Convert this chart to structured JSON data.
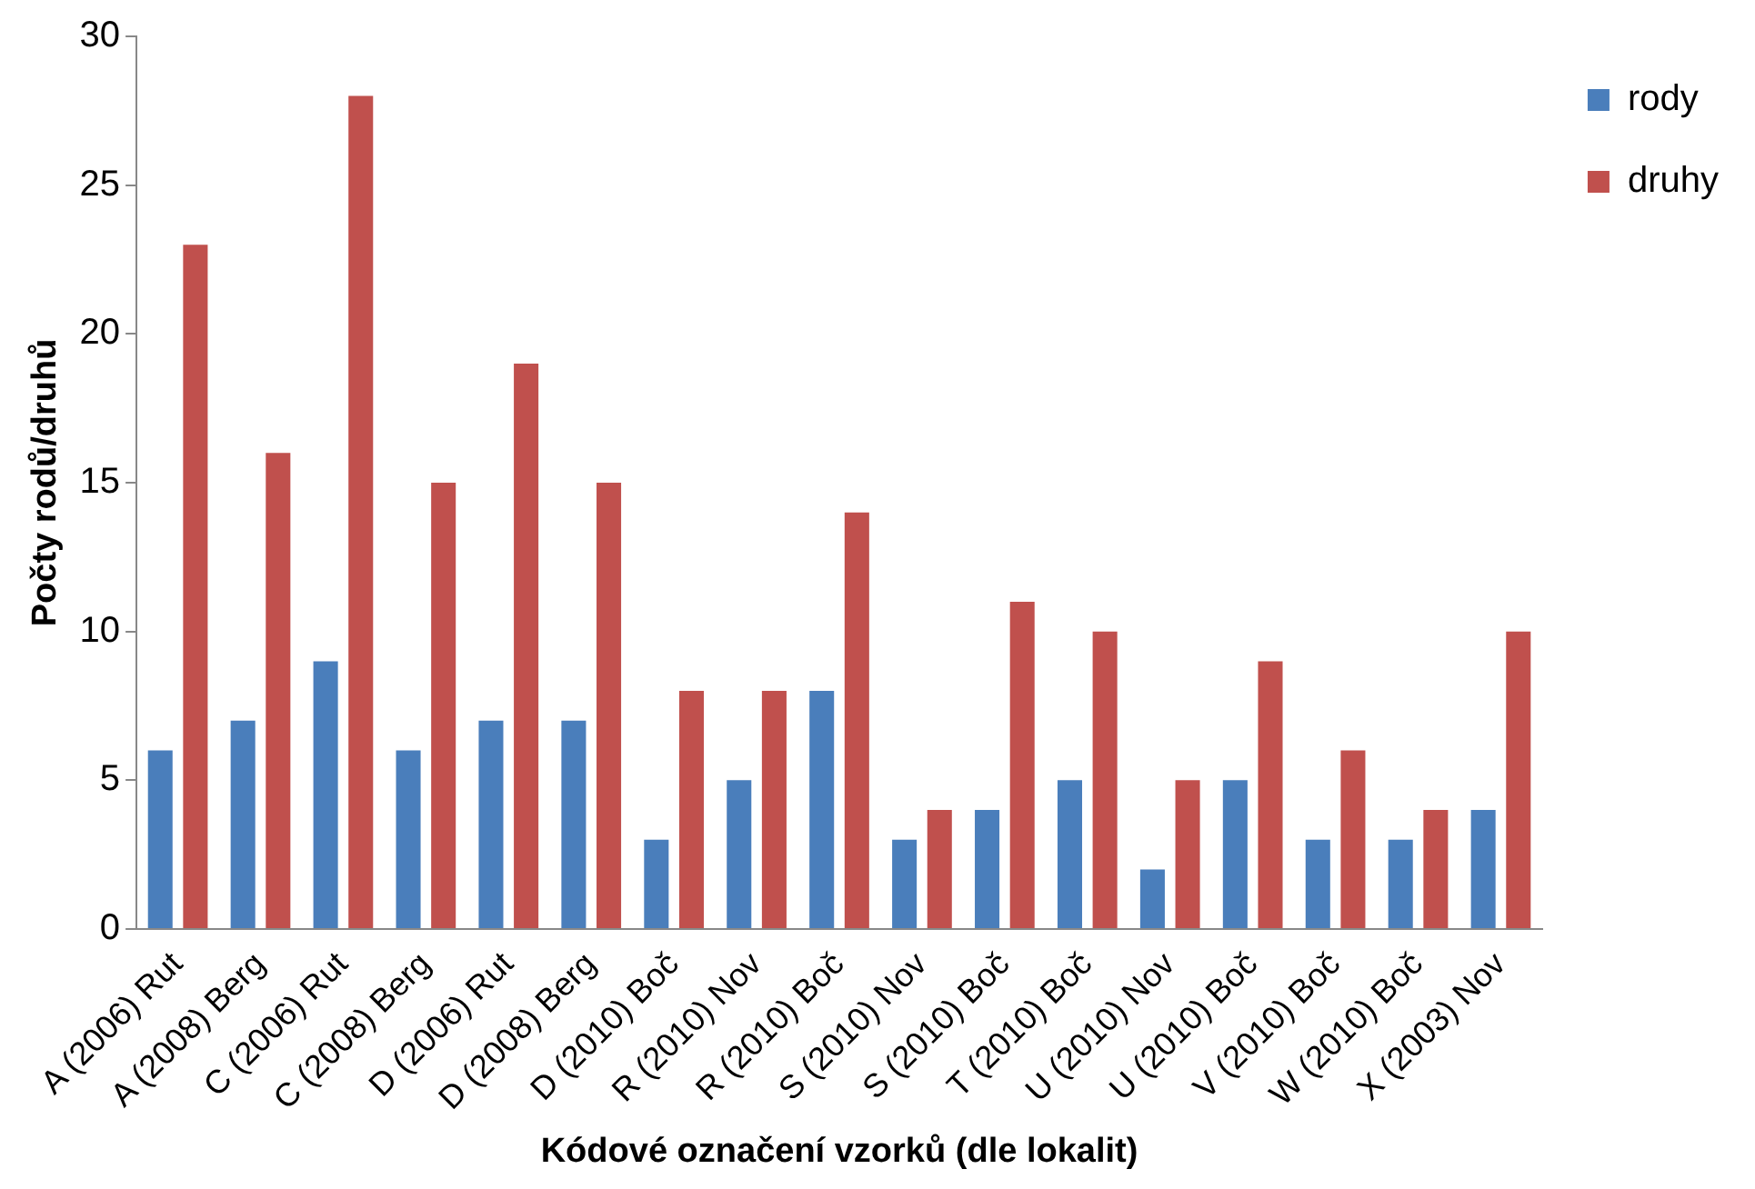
{
  "chart_data": {
    "type": "bar",
    "xlabel": "Kódové označení vzorků (dle lokalit)",
    "ylabel": "Počty rodů/druhů",
    "categories": [
      "A (2006) Rut",
      "A (2008) Berg",
      "C (2006) Rut",
      "C (2008) Berg",
      "D (2006) Rut",
      "D (2008) Berg",
      "D (2010) Boč",
      "R (2010) Nov",
      "R (2010) Boč",
      "S (2010) Nov",
      "S (2010) Boč",
      "T (2010) Boč",
      "U (2010) Nov",
      "U (2010) Boč",
      "V (2010) Boč",
      "W (2010) Boč",
      "X (2003) Nov"
    ],
    "series": [
      {
        "name": "rody",
        "color": "#4a7ebb",
        "values": [
          6,
          7,
          9,
          6,
          7,
          7,
          3,
          5,
          8,
          3,
          4,
          5,
          2,
          5,
          3,
          3,
          4
        ]
      },
      {
        "name": "druhy",
        "color": "#c0504d",
        "values": [
          23,
          16,
          28,
          15,
          19,
          15,
          8,
          8,
          14,
          4,
          11,
          10,
          5,
          9,
          6,
          4,
          10
        ]
      }
    ],
    "ylim": [
      0,
      30
    ],
    "yticks": [
      0,
      5,
      10,
      15,
      20,
      25,
      30
    ],
    "grid": false,
    "legend": "top right"
  }
}
